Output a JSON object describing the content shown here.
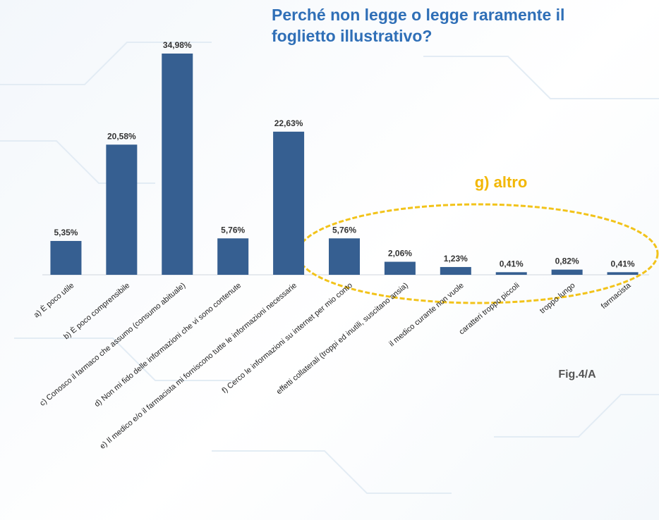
{
  "chart_data": {
    "type": "bar",
    "title": "Perché non legge o legge raramente il foglietto illustrativo?",
    "categories": [
      "a) È poco utile",
      "b) È poco comprensibile",
      "c) Conosco il farmaco che assumo (consumo abituale)",
      "d) Non mi fido delle informazioni che vi sono contenute",
      "e) Il medico e/o il farmacista mi forniscono tutte le informazioni necessarie",
      "f) Cerco le informazioni su internet per mio conto",
      "effetti collaterali (troppi ed inutili, suscitano ansia)",
      "il medico curante non vuole",
      "caratteri troppo piccoli",
      "troppo lungo",
      "farmacista"
    ],
    "values": [
      5.35,
      20.58,
      34.98,
      5.76,
      22.63,
      5.76,
      2.06,
      1.23,
      0.41,
      0.82,
      0.41
    ],
    "value_labels": [
      "5,35%",
      "20,58%",
      "34,98%",
      "5,76%",
      "22,63%",
      "5,76%",
      "2,06%",
      "1,23%",
      "0,41%",
      "0,82%",
      "0,41%"
    ],
    "color": "#365f91",
    "annotations": [
      "g) altro",
      "Fig.4/A"
    ]
  }
}
